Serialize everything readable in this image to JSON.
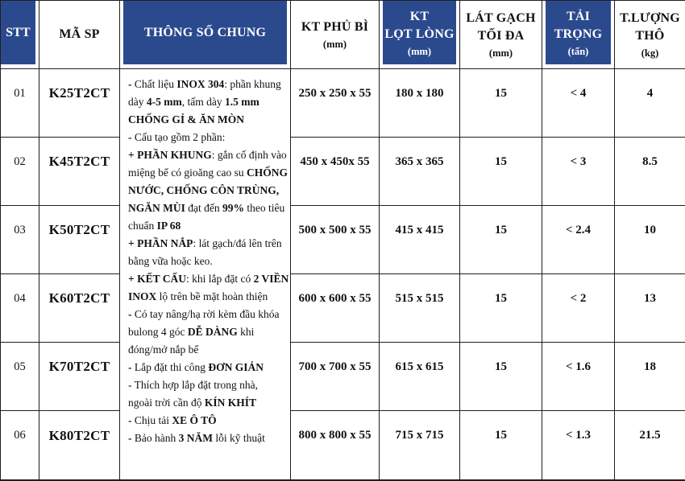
{
  "table": {
    "colors": {
      "header_blue": "#2B4A8E",
      "border": "#1f1f1f",
      "text": "#121212"
    },
    "header": {
      "cols": [
        {
          "label": "STT",
          "sub": ""
        },
        {
          "label": "MÃ SP",
          "sub": ""
        },
        {
          "label": "THÔNG SỐ CHUNG",
          "sub": ""
        },
        {
          "label": "KT PHỦ BÌ",
          "sub": "(mm)"
        },
        {
          "label": "KT\nLỌT LÒNG",
          "sub": "(mm)"
        },
        {
          "label": "LÁT GẠCH\nTỐI ĐA",
          "sub": "(mm)"
        },
        {
          "label": "TẢI\nTRỌNG",
          "sub": "(tấn)"
        },
        {
          "label": "T.LƯỢNG\nTHÔ",
          "sub": "(kg)"
        }
      ]
    },
    "rows": [
      {
        "stt": "01",
        "ma_sp": "K25T2CT",
        "kt_phu_bi": "250 x 250 x 55",
        "kt_lot_long": "180 x 180",
        "lat_gach_toi_da": "15",
        "tai_trong": "< 4",
        "t_luong_tho": "4"
      },
      {
        "stt": "02",
        "ma_sp": "K45T2CT",
        "kt_phu_bi": "450 x 450x 55",
        "kt_lot_long": "365 x 365",
        "lat_gach_toi_da": "15",
        "tai_trong": "< 3",
        "t_luong_tho": "8.5"
      },
      {
        "stt": "03",
        "ma_sp": "K50T2CT",
        "kt_phu_bi": "500 x 500 x 55",
        "kt_lot_long": "415 x 415",
        "lat_gach_toi_da": "15",
        "tai_trong": "< 2.4",
        "t_luong_tho": "10"
      },
      {
        "stt": "04",
        "ma_sp": "K60T2CT",
        "kt_phu_bi": "600 x 600 x 55",
        "kt_lot_long": "515 x 515",
        "lat_gach_toi_da": "15",
        "tai_trong": "< 2",
        "t_luong_tho": "13"
      },
      {
        "stt": "05",
        "ma_sp": "K70T2CT",
        "kt_phu_bi": "700 x 700 x 55",
        "kt_lot_long": "615 x 615",
        "lat_gach_toi_da": "15",
        "tai_trong": "< 1.6",
        "t_luong_tho": "18"
      },
      {
        "stt": "06",
        "ma_sp": "K80T2CT",
        "kt_phu_bi": "800 x 800 x 55",
        "kt_lot_long": "715 x 715",
        "lat_gach_toi_da": "15",
        "tai_trong": "< 1.3",
        "t_luong_tho": "21.5"
      }
    ],
    "specs_lines": [
      [
        [
          "b",
          "- "
        ],
        [
          "n",
          "Chất liệu "
        ],
        [
          "b",
          "INOX 304"
        ],
        [
          "n",
          ": phần khung"
        ]
      ],
      [
        [
          "n",
          "dày "
        ],
        [
          "b",
          "4-5 mm"
        ],
        [
          "n",
          ", tấm dày "
        ],
        [
          "b",
          "1.5 mm"
        ]
      ],
      [
        [
          "b",
          "CHỐNG GỈ & ĂN MÒN"
        ]
      ],
      [
        [
          "b",
          "- "
        ],
        [
          "n",
          "Cấu tạo gồm 2 phần:"
        ]
      ],
      [
        [
          "b",
          "+ PHẦN KHUNG"
        ],
        [
          "n",
          ": gắn cố định vào"
        ]
      ],
      [
        [
          "n",
          "miệng bể có gioăng cao su "
        ],
        [
          "b",
          "CHỐNG"
        ]
      ],
      [
        [
          "b",
          "NƯỚC, CHỐNG CÔN TRÙNG,"
        ]
      ],
      [
        [
          "b",
          "NGĂN MÙI"
        ],
        [
          "n",
          " đạt đến "
        ],
        [
          "b",
          "99%"
        ],
        [
          "n",
          " theo tiêu"
        ]
      ],
      [
        [
          "n",
          "chuẩn "
        ],
        [
          "b",
          "IP 68"
        ]
      ],
      [
        [
          "b",
          "+ PHẦN NẮP"
        ],
        [
          "n",
          ": lát gạch/đá lên trên"
        ]
      ],
      [
        [
          "n",
          "bằng vữa hoặc keo."
        ]
      ],
      [
        [
          "b",
          "+ KẾT CẤU"
        ],
        [
          "n",
          ": khi lắp đặt có "
        ],
        [
          "b",
          "2 VIỀN"
        ]
      ],
      [
        [
          "b",
          "INOX"
        ],
        [
          "n",
          " lộ trên bề mặt hoàn thiện"
        ]
      ],
      [
        [
          "b",
          "- "
        ],
        [
          "n",
          "Có tay nâng/hạ rời kèm đầu khóa"
        ]
      ],
      [
        [
          "n",
          "bulong 4 góc "
        ],
        [
          "b",
          "DỄ DÀNG"
        ],
        [
          "n",
          " khi"
        ]
      ],
      [
        [
          "n",
          "đóng/mở nắp bể"
        ]
      ],
      [
        [
          "b",
          "- "
        ],
        [
          "n",
          "Lắp đặt thi công "
        ],
        [
          "b",
          "ĐƠN GIẢN"
        ]
      ],
      [
        [
          "n",
          "- Thích hợp lắp đặt trong nhà,"
        ]
      ],
      [
        [
          "n",
          "ngoài trời cần độ "
        ],
        [
          "b",
          "KÍN KHÍT"
        ]
      ],
      [
        [
          "b",
          "- "
        ],
        [
          "n",
          "Chịu tải "
        ],
        [
          "b",
          "XE Ô TÔ"
        ]
      ],
      [
        [
          "b",
          "- "
        ],
        [
          "n",
          "Bảo hành "
        ],
        [
          "b",
          "3 NĂM"
        ],
        [
          "n",
          " lỗi kỹ thuật"
        ]
      ]
    ]
  }
}
